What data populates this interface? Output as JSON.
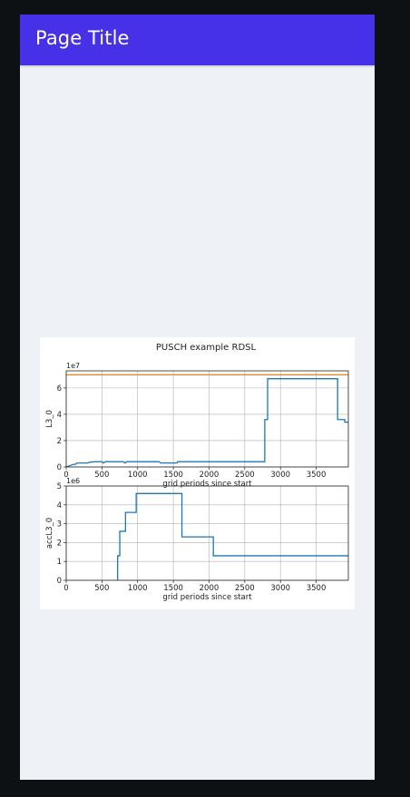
{
  "app": {
    "title": "Page Title"
  },
  "figure": {
    "suptitle": "PUSCH example RDSL",
    "colors": {
      "line": "#1f77b4",
      "ref": "#ff7f0e",
      "grid": "#b0b0b0",
      "appbar": "#4630e8"
    }
  },
  "chart_data": [
    {
      "type": "line",
      "title": "PUSCH example RDSL",
      "xlabel": "grid periods since start",
      "ylabel": "L3_0",
      "y_multiplier": "1e7",
      "xlim": [
        0,
        3950
      ],
      "ylim": [
        0,
        7.3
      ],
      "x_ticks": [
        "0",
        "500",
        "1000",
        "1500",
        "2000",
        "2500",
        "3000",
        "3500"
      ],
      "y_ticks": [
        "0",
        "2",
        "4",
        "6"
      ],
      "grid": true,
      "series": [
        {
          "values": [
            [
              0,
              0.0
            ],
            [
              50,
              0.1
            ],
            [
              100,
              0.2
            ],
            [
              130,
              0.2
            ],
            [
              150,
              0.3
            ],
            [
              300,
              0.3
            ],
            [
              320,
              0.35
            ],
            [
              400,
              0.4
            ],
            [
              500,
              0.4
            ],
            [
              520,
              0.3
            ],
            [
              550,
              0.4
            ],
            [
              800,
              0.4
            ],
            [
              820,
              0.3
            ],
            [
              850,
              0.4
            ],
            [
              1300,
              0.4
            ],
            [
              1320,
              0.3
            ],
            [
              1550,
              0.3
            ],
            [
              1560,
              0.4
            ],
            [
              2780,
              0.4
            ],
            [
              2780,
              3.6
            ],
            [
              2820,
              3.6
            ],
            [
              2820,
              6.7
            ],
            [
              3800,
              6.7
            ],
            [
              3800,
              3.6
            ],
            [
              3900,
              3.6
            ],
            [
              3900,
              3.4
            ],
            [
              3950,
              3.4
            ]
          ]
        },
        {
          "values": [
            [
              0,
              7.0
            ],
            [
              3950,
              7.0
            ]
          ]
        }
      ]
    },
    {
      "type": "line",
      "xlabel": "grid periods since start",
      "ylabel": "accL3_0",
      "y_multiplier": "1e6",
      "xlim": [
        0,
        3950
      ],
      "ylim": [
        0,
        5
      ],
      "x_ticks": [
        "0",
        "500",
        "1000",
        "1500",
        "2000",
        "2500",
        "3000",
        "3500"
      ],
      "y_ticks": [
        "0",
        "1",
        "2",
        "3",
        "4",
        "5"
      ],
      "grid": true,
      "series": [
        {
          "values": [
            [
              720,
              0.0
            ],
            [
              720,
              1.3
            ],
            [
              750,
              1.3
            ],
            [
              750,
              2.6
            ],
            [
              830,
              2.6
            ],
            [
              830,
              3.6
            ],
            [
              980,
              3.6
            ],
            [
              980,
              4.6
            ],
            [
              1620,
              4.6
            ],
            [
              1620,
              2.3
            ],
            [
              2060,
              2.3
            ],
            [
              2060,
              1.3
            ],
            [
              3900,
              1.3
            ],
            [
              3950,
              1.3
            ]
          ]
        }
      ]
    }
  ]
}
